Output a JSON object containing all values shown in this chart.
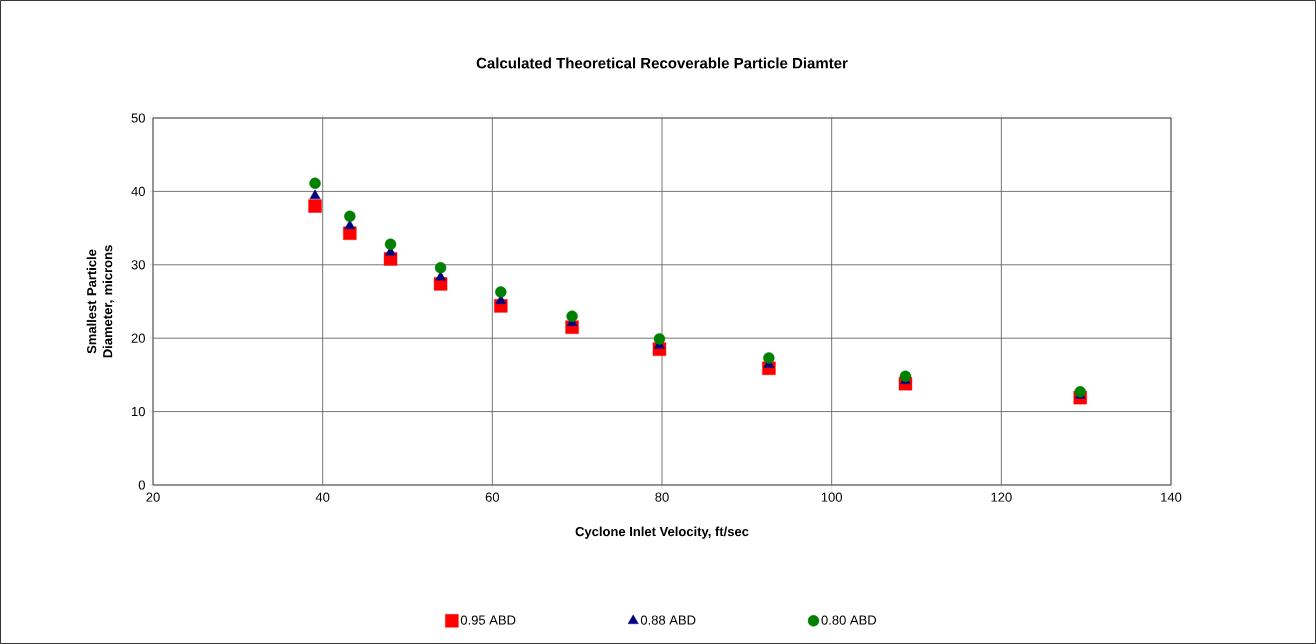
{
  "chart_data": {
    "type": "scatter",
    "title": "Calculated Theoretical Recoverable Particle Diamter",
    "xlabel": "Cyclone Inlet Velocity, ft/sec",
    "ylabel": "Smallest Particle Diameter, microns",
    "x": [
      39.1,
      43.2,
      48.0,
      53.9,
      61.0,
      69.4,
      79.7,
      92.6,
      108.7,
      129.3
    ],
    "series": [
      {
        "name": "0.95 ABD",
        "color": "#ff0000",
        "marker": "square",
        "values": [
          38.0,
          34.3,
          30.8,
          27.4,
          24.4,
          21.5,
          18.5,
          15.9,
          13.8,
          11.9
        ]
      },
      {
        "name": "0.88 ABD",
        "color": "#000080",
        "marker": "triangle",
        "values": [
          39.4,
          35.3,
          31.7,
          28.3,
          25.1,
          22.1,
          19.0,
          16.4,
          14.2,
          12.2
        ]
      },
      {
        "name": "0.80 ABD",
        "color": "#008000",
        "marker": "circle",
        "values": [
          41.1,
          36.6,
          32.8,
          29.6,
          26.3,
          23.0,
          19.9,
          17.3,
          14.8,
          12.7
        ]
      }
    ],
    "xlim": [
      20,
      140
    ],
    "xticks": [
      20,
      40,
      60,
      80,
      100,
      120,
      140
    ],
    "ylim": [
      0,
      50
    ],
    "yticks": [
      0,
      10,
      20,
      30,
      40,
      50
    ],
    "grid": true,
    "legend": "bottom"
  }
}
